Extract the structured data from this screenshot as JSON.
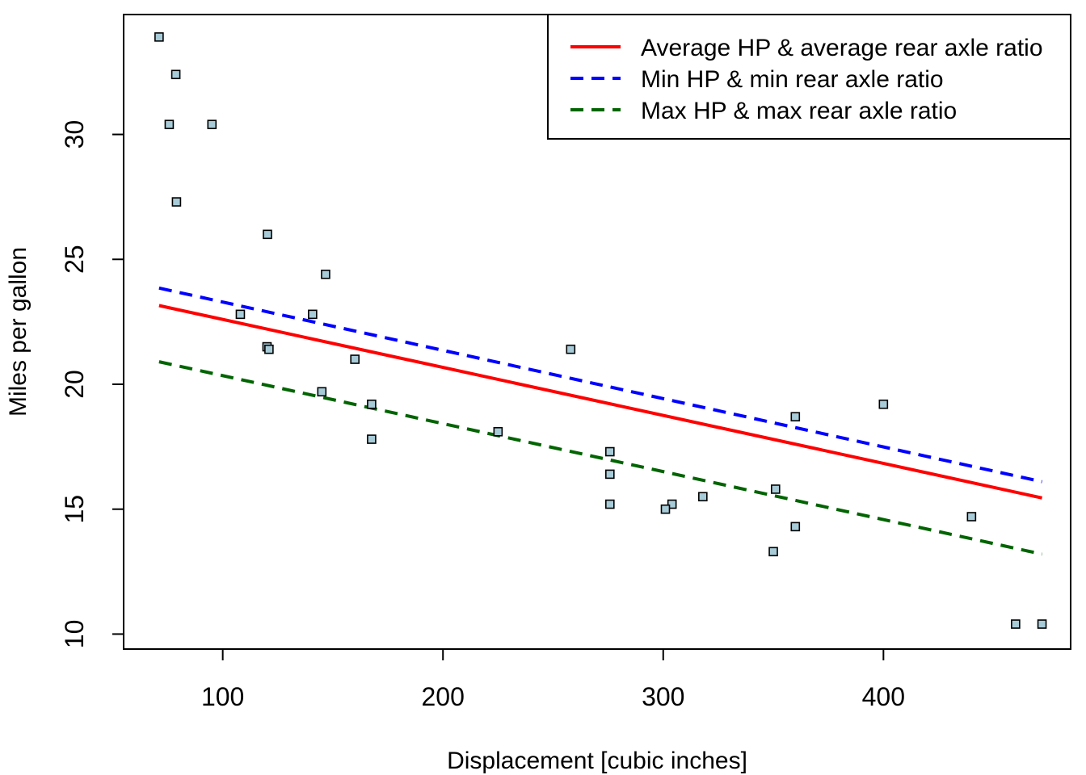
{
  "chart_data": {
    "type": "scatter",
    "title": "",
    "xlabel": "Displacement [cubic inches]",
    "ylabel": "Miles per gallon",
    "xlim": [
      55,
      485
    ],
    "ylim": [
      9.4,
      34.8
    ],
    "x_ticks": [
      100,
      200,
      300,
      400
    ],
    "y_ticks": [
      10,
      15,
      20,
      25,
      30
    ],
    "grid": false,
    "legend_position": "top-right",
    "points": {
      "marker": "square",
      "fill": "#a8cbd8",
      "stroke": "#000000",
      "data": [
        [
          71.1,
          33.9
        ],
        [
          78.7,
          32.4
        ],
        [
          75.7,
          30.4
        ],
        [
          95.1,
          30.4
        ],
        [
          79.0,
          27.3
        ],
        [
          120.3,
          26.0
        ],
        [
          146.7,
          24.4
        ],
        [
          108.0,
          22.8
        ],
        [
          140.8,
          22.8
        ],
        [
          120.1,
          21.5
        ],
        [
          121.0,
          21.4
        ],
        [
          258.0,
          21.4
        ],
        [
          160.0,
          21.0
        ],
        [
          145.0,
          19.7
        ],
        [
          167.6,
          19.2
        ],
        [
          400.0,
          19.2
        ],
        [
          360.0,
          18.7
        ],
        [
          225.0,
          18.1
        ],
        [
          167.6,
          17.8
        ],
        [
          275.8,
          17.3
        ],
        [
          275.8,
          16.4
        ],
        [
          351.0,
          15.8
        ],
        [
          318.0,
          15.5
        ],
        [
          304.0,
          15.2
        ],
        [
          275.8,
          15.2
        ],
        [
          301.0,
          15.0
        ],
        [
          440.0,
          14.7
        ],
        [
          360.0,
          14.3
        ],
        [
          350.0,
          13.3
        ],
        [
          460.0,
          10.4
        ],
        [
          472.0,
          10.4
        ]
      ]
    },
    "series": [
      {
        "name": "Average HP & average rear axle ratio",
        "color": "#ff0000",
        "dash": "solid",
        "x": [
          71.1,
          472.0
        ],
        "y": [
          23.15,
          15.45
        ]
      },
      {
        "name": "Min HP & min rear axle ratio",
        "color": "#0000ff",
        "dash": "dashed",
        "x": [
          71.1,
          472.0
        ],
        "y": [
          23.85,
          16.1
        ]
      },
      {
        "name": "Max HP & max rear axle ratio",
        "color": "#006400",
        "dash": "dashed",
        "x": [
          71.1,
          472.0
        ],
        "y": [
          20.9,
          13.2
        ]
      }
    ]
  }
}
